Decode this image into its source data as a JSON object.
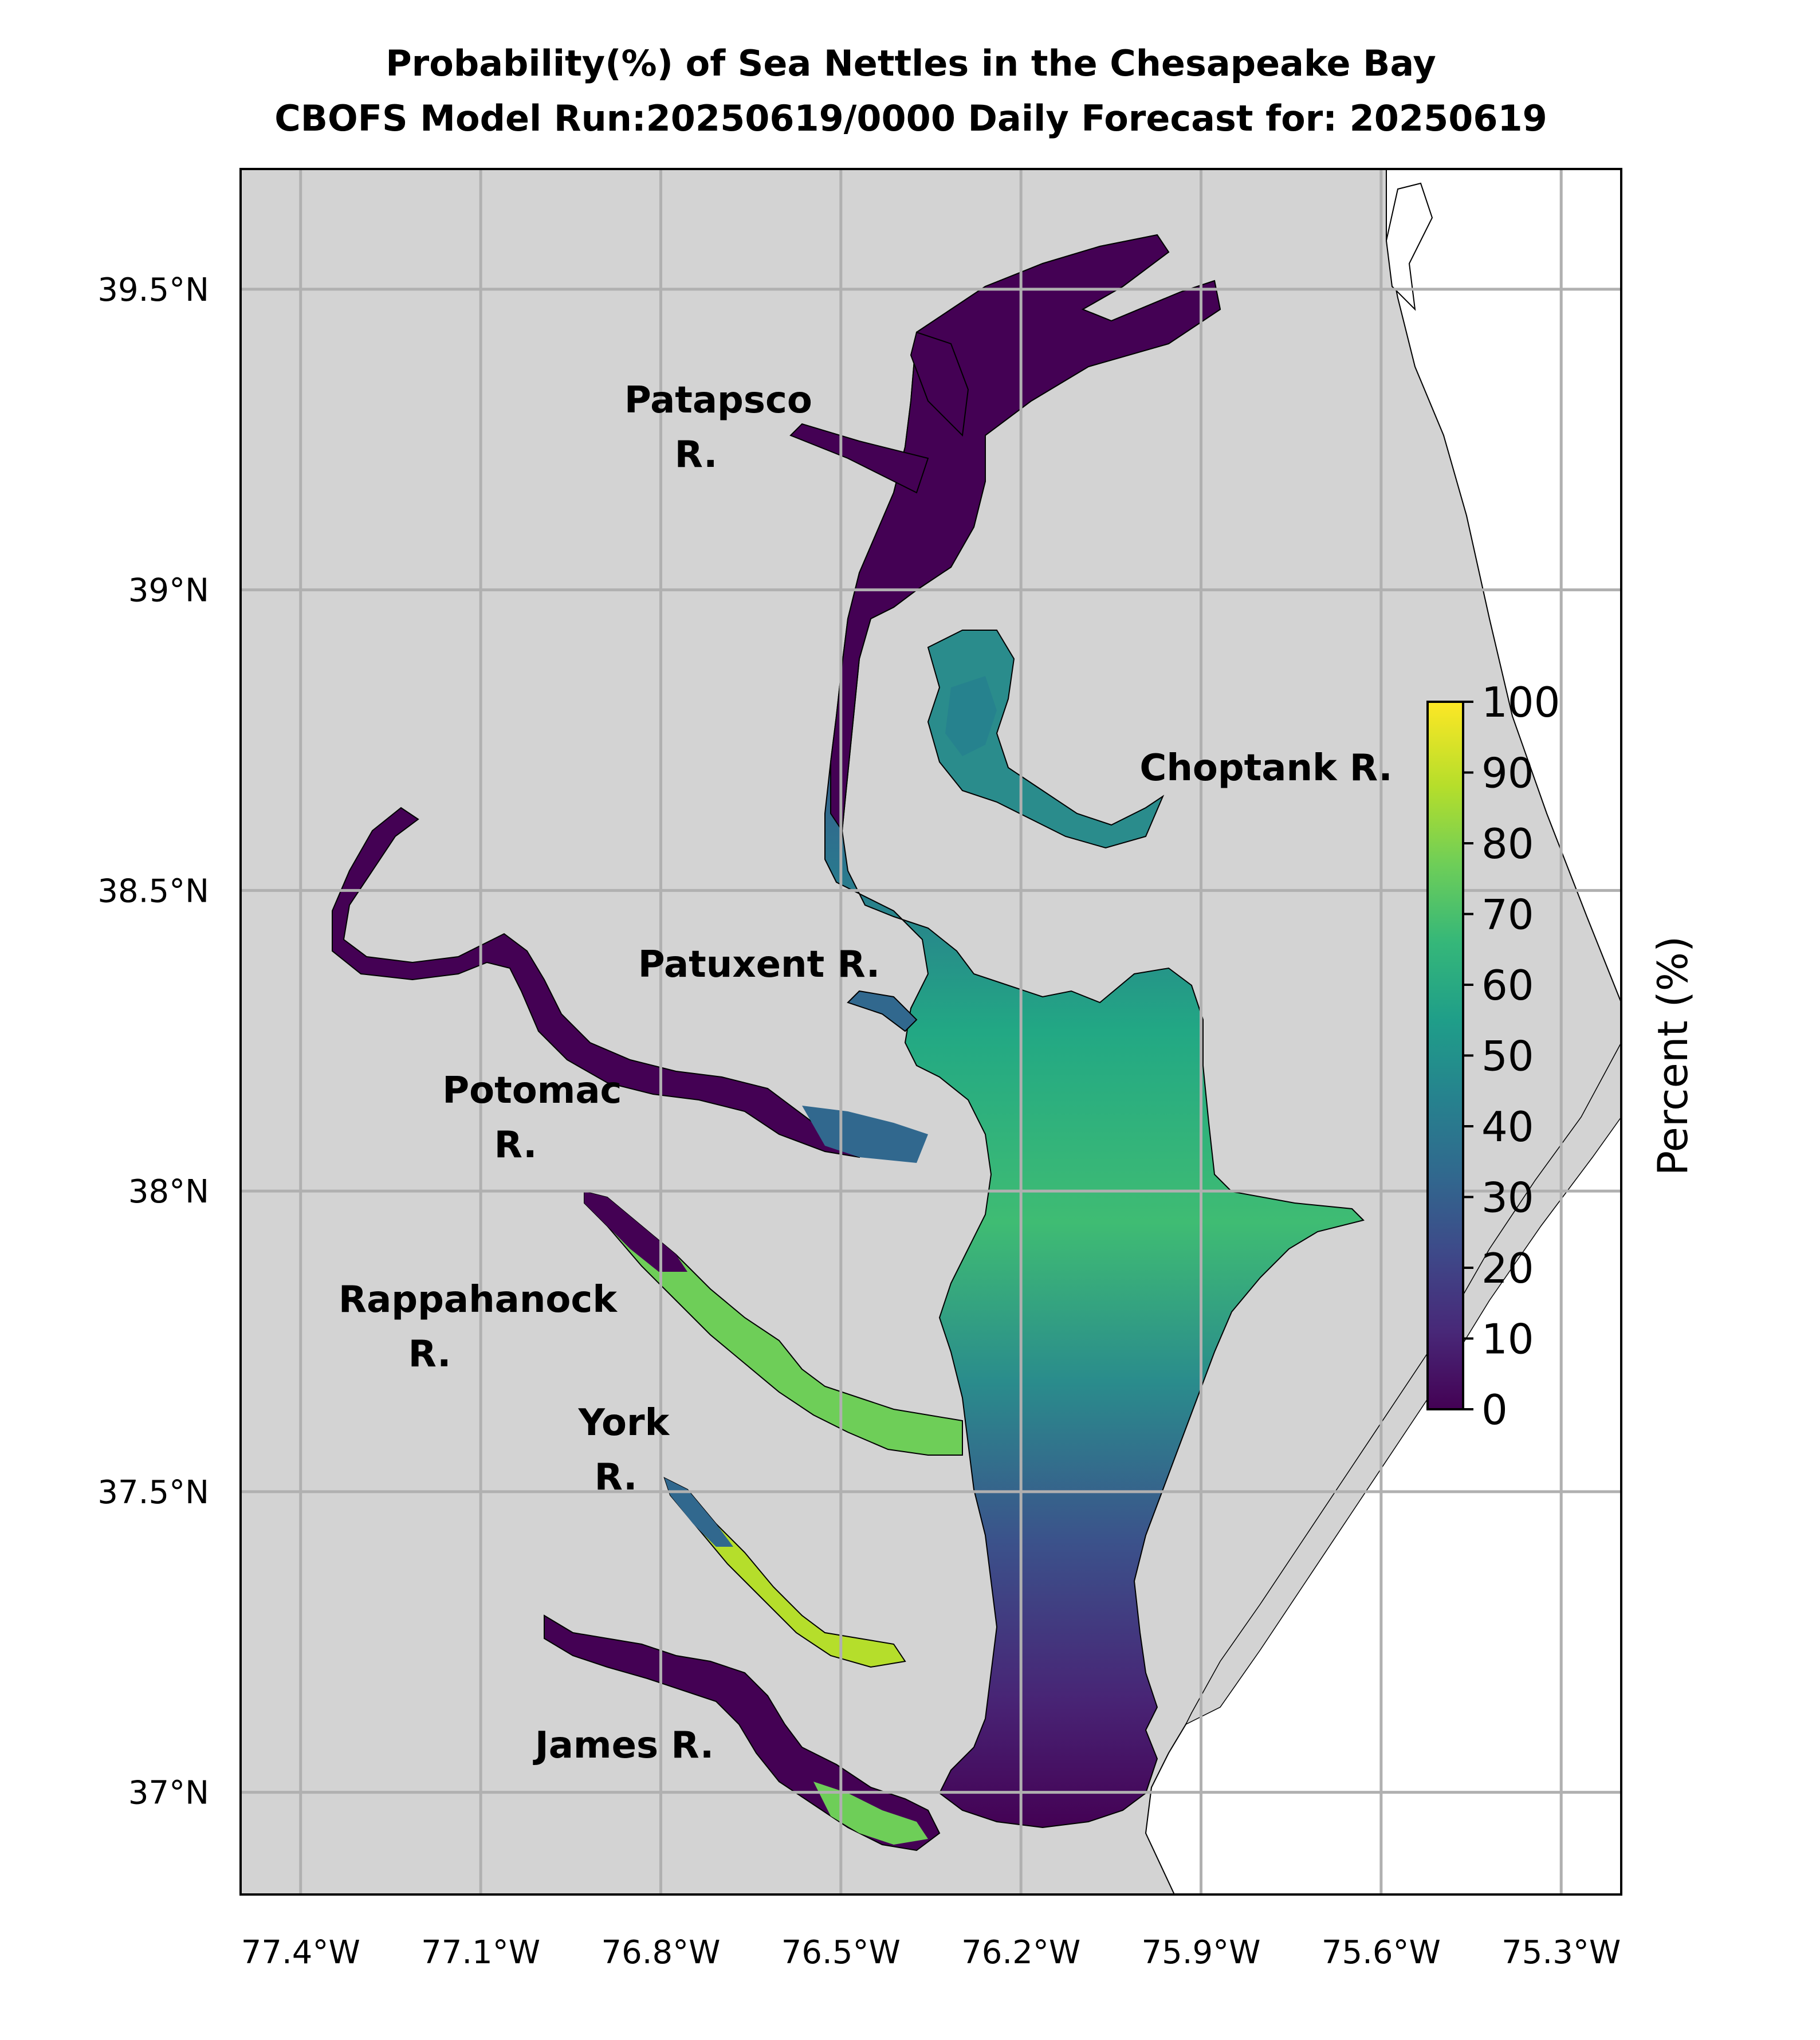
{
  "title": {
    "line1": "Probability(%) of Sea Nettles in the Chesapeake Bay",
    "line2": "CBOFS Model Run:20250619/0000 Daily Forecast for: 20250619"
  },
  "axes": {
    "lat_ticks": [
      "39.5°N",
      "39°N",
      "38.5°N",
      "38°N",
      "37.5°N",
      "37°N"
    ],
    "lon_ticks": [
      "77.4°W",
      "77.1°W",
      "76.8°W",
      "76.5°W",
      "76.2°W",
      "75.9°W",
      "75.6°W",
      "75.3°W"
    ],
    "lat_values": [
      39.5,
      39.0,
      38.5,
      38.0,
      37.5,
      37.0
    ],
    "lon_values": [
      -77.4,
      -77.1,
      -76.8,
      -76.5,
      -76.2,
      -75.9,
      -75.6,
      -75.3
    ],
    "lat_range": [
      36.83,
      39.7
    ],
    "lon_range": [
      -77.5,
      -75.2
    ]
  },
  "rivers": [
    {
      "name": "Patapsco\nR.",
      "line1": "Patapsco",
      "line2": "R."
    },
    {
      "name": "Choptank R.",
      "line1": "Choptank R.",
      "line2": ""
    },
    {
      "name": "Patuxent R.",
      "line1": "Patuxent R.",
      "line2": ""
    },
    {
      "name": "Potomac R.",
      "line1": "Potomac",
      "line2": "R."
    },
    {
      "name": "Rappahanock R.",
      "line1": "Rappahanock",
      "line2": "R."
    },
    {
      "name": "York R.",
      "line1": "York",
      "line2": "R."
    },
    {
      "name": "James R.",
      "line1": "James R.",
      "line2": ""
    }
  ],
  "colorbar": {
    "label": "Percent (%)",
    "ticks": [
      "0",
      "10",
      "20",
      "30",
      "40",
      "50",
      "60",
      "70",
      "80",
      "90",
      "100"
    ],
    "colormap": "viridis",
    "colors": [
      "#440154",
      "#482878",
      "#3e4989",
      "#31688e",
      "#26828e",
      "#1f9e89",
      "#35b779",
      "#6ece58",
      "#b5de2b",
      "#fde725"
    ]
  },
  "colors": {
    "land": "#d3d3d3",
    "ocean": "#ffffff",
    "grid": "#b0b0b0"
  }
}
